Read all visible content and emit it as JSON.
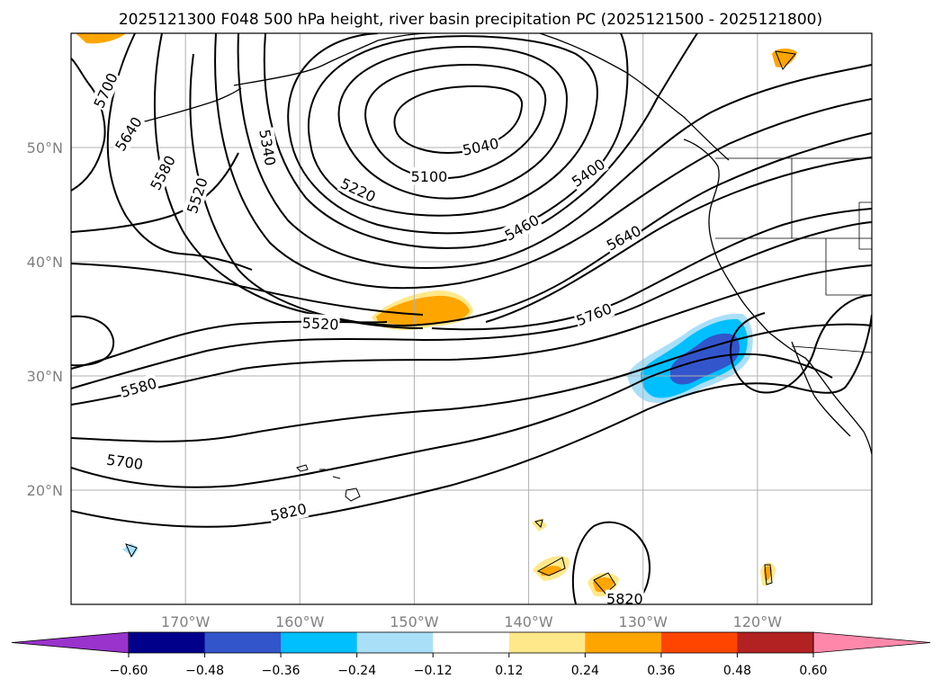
{
  "title": "2025121300 F048 500 hPa height, river basin precipitation PC (2025121500 - 2025121800)",
  "map": {
    "lon_ticks": [
      {
        "value": -170,
        "label": "170°W"
      },
      {
        "value": -160,
        "label": "160°W"
      },
      {
        "value": -150,
        "label": "150°W"
      },
      {
        "value": -140,
        "label": "140°W"
      },
      {
        "value": -130,
        "label": "130°W"
      },
      {
        "value": -120,
        "label": "120°W"
      }
    ],
    "lat_ticks": [
      {
        "value": 20,
        "label": "20°N"
      },
      {
        "value": 30,
        "label": "30°N"
      },
      {
        "value": 40,
        "label": "40°N"
      },
      {
        "value": 50,
        "label": "50°N"
      }
    ],
    "gridlines": true,
    "extent": {
      "lon_min": -180,
      "lon_max": -110,
      "lat_min": 10,
      "lat_max": 60
    },
    "contour_labels": [
      {
        "text": "5700",
        "lon": -177.0,
        "lat": 55.0,
        "rot": -65
      },
      {
        "text": "5640",
        "lon": -175.0,
        "lat": 51.2,
        "rot": -58
      },
      {
        "text": "5580",
        "lon": -172.0,
        "lat": 47.8,
        "rot": -62
      },
      {
        "text": "5520",
        "lon": -169.0,
        "lat": 45.8,
        "rot": -72
      },
      {
        "text": "5340",
        "lon": -162.8,
        "lat": 50.0,
        "rot": 80
      },
      {
        "text": "5220",
        "lon": -154.9,
        "lat": 46.3,
        "rot": 25
      },
      {
        "text": "5100",
        "lon": -148.7,
        "lat": 47.5,
        "rot": 0
      },
      {
        "text": "5040",
        "lon": -144.2,
        "lat": 50.1,
        "rot": -12
      },
      {
        "text": "5400",
        "lon": -134.8,
        "lat": 47.8,
        "rot": -35
      },
      {
        "text": "5460",
        "lon": -140.6,
        "lat": 43.0,
        "rot": -30
      },
      {
        "text": "5640",
        "lon": -131.7,
        "lat": 42.1,
        "rot": -28
      },
      {
        "text": "5520",
        "lon": -158.2,
        "lat": 34.6,
        "rot": 3
      },
      {
        "text": "5760",
        "lon": -134.3,
        "lat": 35.4,
        "rot": -22
      },
      {
        "text": "5580",
        "lon": -174.1,
        "lat": 29.0,
        "rot": -16
      },
      {
        "text": "5700",
        "lon": -175.3,
        "lat": 22.5,
        "rot": 8
      },
      {
        "text": "5820",
        "lon": -161.0,
        "lat": 18.1,
        "rot": -12
      },
      {
        "text": "5820",
        "lon": -131.6,
        "lat": 10.5,
        "rot": 0
      }
    ]
  },
  "colorbar": {
    "ticks": [
      "−0.60",
      "−0.48",
      "−0.36",
      "−0.24",
      "−0.12",
      "0.12",
      "0.24",
      "0.36",
      "0.48",
      "0.60"
    ],
    "colors": [
      "#9933cc",
      "#00008b",
      "#3355cc",
      "#00bfff",
      "#aadff8",
      "#ffffff",
      "#ffe88a",
      "#ffa500",
      "#ff4500",
      "#b22222",
      "#ff88aa"
    ]
  },
  "shading_colors": {
    "pos_light": "#ffe88a",
    "pos_mid": "#ffa500",
    "neg_light": "#aadff8",
    "neg_mid": "#00bfff",
    "neg_deep": "#3355cc"
  }
}
